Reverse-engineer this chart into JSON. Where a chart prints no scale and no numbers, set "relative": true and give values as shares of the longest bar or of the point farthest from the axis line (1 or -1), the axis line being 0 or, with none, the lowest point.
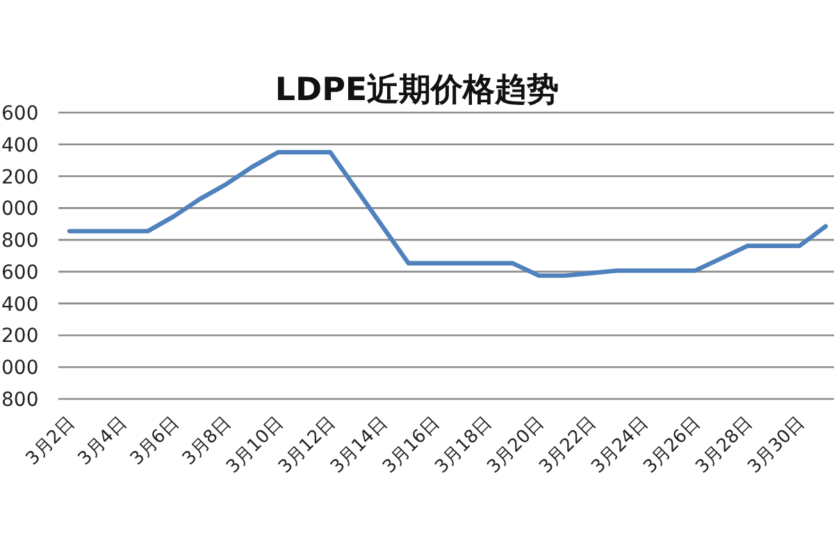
{
  "chart_data": {
    "type": "line",
    "title": "LDPE近期价格趋势",
    "categories": [
      "3月2日",
      null,
      "3月4日",
      null,
      "3月6日",
      null,
      "3月8日",
      null,
      "3月10日",
      null,
      "3月12日",
      null,
      "3月14日",
      null,
      "3月16日",
      null,
      "3月18日",
      null,
      "3月20日",
      null,
      "3月22日",
      null,
      "3月24日",
      null,
      "3月26日",
      null,
      "3月28日",
      null,
      "3月30日",
      null
    ],
    "relative": true,
    "values": [
      0.68,
      0.68,
      0.68,
      0.68,
      0.74,
      0.81,
      0.87,
      0.94,
      1,
      1,
      1,
      0.85,
      0.7,
      0.55,
      0.55,
      0.55,
      0.55,
      0.55,
      0.5,
      0.5,
      0.51,
      0.52,
      0.52,
      0.52,
      0.52,
      0.57,
      0.62,
      0.62,
      0.62,
      0.7
    ],
    "color": "#4f81bd",
    "annotations": [
      "600",
      "400",
      "200",
      "000",
      "800",
      "600",
      "400",
      "200",
      "000",
      "800"
    ],
    "grid": "y"
  }
}
